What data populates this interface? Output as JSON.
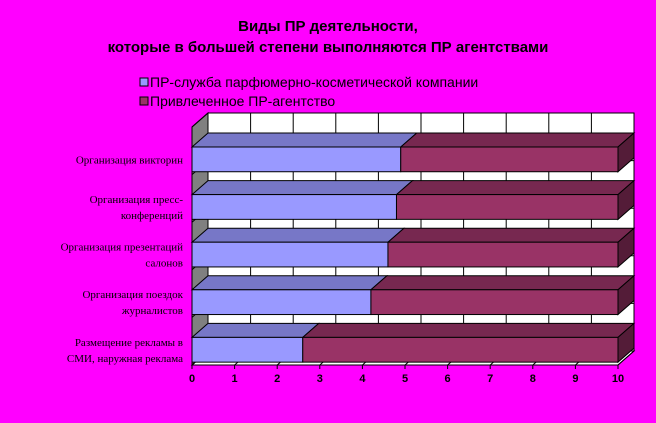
{
  "chart_data": {
    "type": "bar",
    "orientation": "horizontal",
    "stacked": true,
    "three_d": true,
    "title_lines": [
      "Виды ПР деятельности,",
      "которые в большей степени выполняются ПР агентствами"
    ],
    "categories": [
      [
        "Организация викторин"
      ],
      [
        "Организация пресс-",
        "конференций"
      ],
      [
        "Организация презентаций",
        "салонов"
      ],
      [
        "Организация поездок",
        "журналистов"
      ],
      [
        "Размещение рекламы в",
        "СМИ, наружная реклама"
      ]
    ],
    "series": [
      {
        "name": "ПР-служба парфюмерно-косметической компании",
        "color": "#9999ff",
        "values": [
          4.9,
          4.8,
          4.6,
          4.2,
          2.6
        ]
      },
      {
        "name": "Привлеченное ПР-агентство",
        "color": "#993366",
        "values": [
          5.1,
          5.2,
          5.4,
          5.8,
          7.4
        ]
      }
    ],
    "x_ticks": [
      "0",
      "1",
      "2",
      "3",
      "4",
      "5",
      "6",
      "7",
      "8",
      "9",
      "10"
    ],
    "xlim": [
      0,
      10
    ],
    "grid": true,
    "legend_position": "top"
  }
}
